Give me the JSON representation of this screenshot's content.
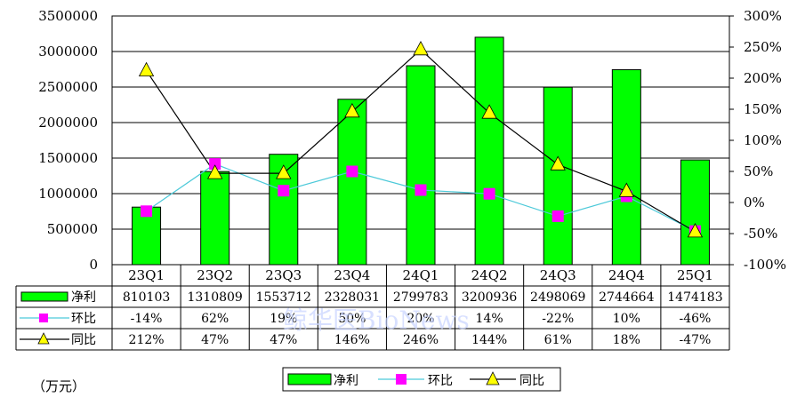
{
  "unit_label": "（万元）",
  "watermark": "鲸华医BioNews",
  "colors": {
    "bar": "#00ff00",
    "bar_stroke": "#000000",
    "hb_line": "#4cc9d9",
    "hb_marker": "#ff00ff",
    "tb_line": "#000000",
    "tb_marker": "#ffff00"
  },
  "chart_data": {
    "type": "bar",
    "categories": [
      "23Q1",
      "23Q2",
      "23Q3",
      "23Q4",
      "24Q1",
      "24Q2",
      "24Q3",
      "24Q4",
      "25Q1"
    ],
    "series": [
      {
        "name": "净利",
        "kind": "bar",
        "axis": "left",
        "values": [
          810103,
          1310809,
          1553712,
          2328031,
          2799783,
          3200936,
          2498069,
          2744664,
          1474183
        ],
        "labels": [
          "810103",
          "1310809",
          "1553712",
          "2328031",
          "2799783",
          "3200936",
          "2498069",
          "2744664",
          "1474183"
        ]
      },
      {
        "name": "环比",
        "kind": "line",
        "axis": "right",
        "marker": "square",
        "values": [
          -14,
          62,
          19,
          50,
          20,
          14,
          -22,
          10,
          -46
        ],
        "labels": [
          "-14%",
          "62%",
          "19%",
          "50%",
          "20%",
          "14%",
          "-22%",
          "10%",
          "-46%"
        ]
      },
      {
        "name": "同比",
        "kind": "line",
        "axis": "right",
        "marker": "triangle",
        "values": [
          212,
          47,
          47,
          146,
          246,
          144,
          61,
          18,
          -47
        ],
        "labels": [
          "212%",
          "47%",
          "47%",
          "146%",
          "246%",
          "144%",
          "61%",
          "18%",
          "-47%"
        ]
      }
    ],
    "y_left": {
      "min": 0,
      "max": 3500000,
      "ticks": [
        "3500000",
        "3000000",
        "2500000",
        "2000000",
        "1500000",
        "1000000",
        "500000",
        "0"
      ]
    },
    "y_right": {
      "min": -100,
      "max": 300,
      "ticks": [
        "300%",
        "250%",
        "200%",
        "150%",
        "100%",
        "50%",
        "0%",
        "-50%",
        "-100%"
      ]
    },
    "grid": true,
    "legend": "bottom"
  }
}
